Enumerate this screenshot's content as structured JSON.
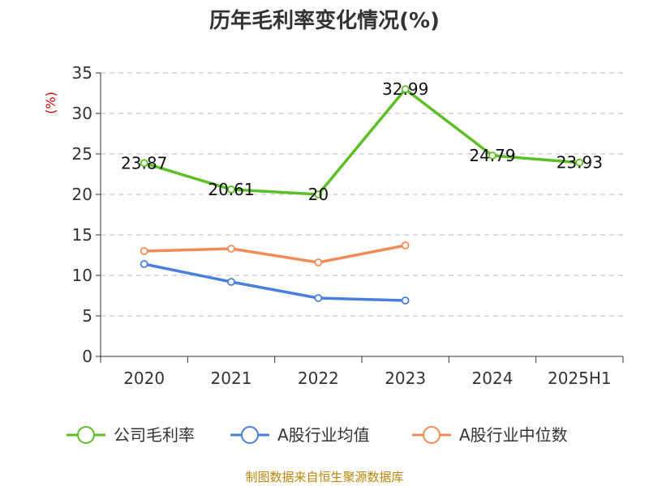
{
  "chart_data": {
    "type": "line",
    "title": "历年毛利率变化情况(%)",
    "ylabel": "(%)",
    "categories": [
      "2020",
      "2021",
      "2022",
      "2023",
      "2024",
      "2025H1"
    ],
    "ylim": [
      0,
      35
    ],
    "yticks": [
      0,
      5,
      10,
      15,
      20,
      25,
      30,
      35
    ],
    "grid": true,
    "legend_position": "bottom",
    "series": [
      {
        "name": "公司毛利率",
        "color": "#5cbf26",
        "values": [
          23.87,
          20.61,
          20,
          32.99,
          24.79,
          23.93
        ],
        "labels": [
          "23.87",
          "20.61",
          "20",
          "32.99",
          "24.79",
          "23.93"
        ]
      },
      {
        "name": "A股行业均值",
        "color": "#4a7fdb",
        "values": [
          11.4,
          9.2,
          7.2,
          6.9,
          null,
          null
        ]
      },
      {
        "name": "A股行业中位数",
        "color": "#f28c57",
        "values": [
          13.0,
          13.3,
          11.6,
          13.7,
          null,
          null
        ]
      }
    ]
  },
  "footer": {
    "source": "制图数据来自恒生聚源数据库"
  }
}
